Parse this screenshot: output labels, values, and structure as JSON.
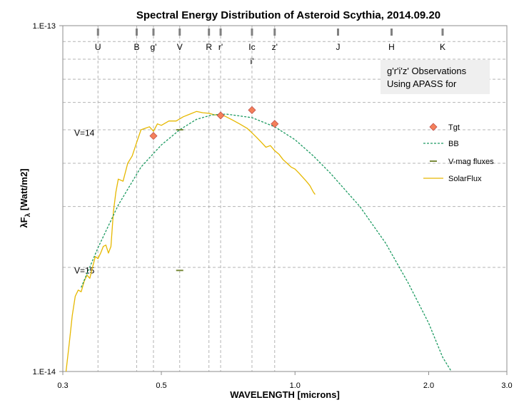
{
  "chart_data": {
    "type": "scatter",
    "title": "Spectral Energy Distribution of Asteroid Scythia, 2014.09.20",
    "xlabel": "WAVELENGTH [microns]",
    "ylabel": "λF",
    "ylabel_subscript": "λ",
    "ylabel_units": " [Watt/m2]",
    "x_scale": "log",
    "y_scale": "log",
    "xlim": [
      0.3,
      3.0
    ],
    "ylim": [
      1e-14,
      1e-13
    ],
    "x_ticks": [
      {
        "value": 0.3,
        "label": "0.3"
      },
      {
        "value": 0.5,
        "label": "0.5"
      },
      {
        "value": 1.0,
        "label": "1.0"
      },
      {
        "value": 2.0,
        "label": "2.0"
      },
      {
        "value": 3.0,
        "label": "3.0"
      }
    ],
    "y_ticks": [
      {
        "value": 1e-13,
        "label": "1.E-13"
      },
      {
        "value": 1e-14,
        "label": "1.E-14"
      }
    ],
    "x_gridlines": [
      0.36,
      0.44,
      0.48,
      0.55,
      0.64,
      0.68,
      0.8,
      0.9
    ],
    "y_gridlines": [
      9e-14,
      8e-14,
      7e-14,
      6e-14,
      5e-14,
      4e-14,
      3e-14,
      2e-14
    ],
    "bands": [
      {
        "label": "U",
        "x": 0.36
      },
      {
        "label": "B",
        "x": 0.44
      },
      {
        "label": "g'",
        "x": 0.48
      },
      {
        "label": "V",
        "x": 0.55
      },
      {
        "label": "R",
        "x": 0.64
      },
      {
        "label": "r'",
        "x": 0.68
      },
      {
        "label": "Ic",
        "label2": "i'",
        "x": 0.8
      },
      {
        "label": "z'",
        "x": 0.9
      },
      {
        "label": "J",
        "x": 1.25
      },
      {
        "label": "H",
        "x": 1.65
      },
      {
        "label": "K",
        "x": 2.15
      }
    ],
    "vmag_labels": [
      {
        "label": "V=14",
        "y": 4.9e-14
      },
      {
        "label": "V=15",
        "y": 1.96e-14
      }
    ],
    "note": {
      "line1": "g'r'i'z' Observations",
      "line2": "Using APASS for"
    },
    "legend_position": "right",
    "colors": {
      "tgt_fill": "#f4805a",
      "tgt_stroke": "#c0504d",
      "bb": "#1e9b63",
      "vmag": "#7a8b3c",
      "solar": "#e6b800",
      "grid": "#b4b4b4",
      "note_bg": "#efefef"
    },
    "series": [
      {
        "name": "Tgt",
        "kind": "marker",
        "points": [
          [
            0.48,
            4.8e-14
          ],
          [
            0.68,
            5.5e-14
          ],
          [
            0.8,
            5.7e-14
          ],
          [
            0.9,
            5.2e-14
          ]
        ]
      },
      {
        "name": "BB",
        "kind": "dashed-line",
        "points": [
          [
            0.33,
            1.75e-14
          ],
          [
            0.36,
            2.28e-14
          ],
          [
            0.4,
            3.03e-14
          ],
          [
            0.45,
            3.9e-14
          ],
          [
            0.5,
            4.52e-14
          ],
          [
            0.55,
            5e-14
          ],
          [
            0.6,
            5.36e-14
          ],
          [
            0.65,
            5.52e-14
          ],
          [
            0.7,
            5.55e-14
          ],
          [
            0.8,
            5.42e-14
          ],
          [
            0.9,
            5.1e-14
          ],
          [
            1.0,
            4.68e-14
          ],
          [
            1.1,
            4.2e-14
          ],
          [
            1.2,
            3.75e-14
          ],
          [
            1.4,
            3e-14
          ],
          [
            1.6,
            2.35e-14
          ],
          [
            1.8,
            1.8e-14
          ],
          [
            2.0,
            1.38e-14
          ],
          [
            2.15,
            1.1e-14
          ],
          [
            2.25,
            1e-14
          ]
        ]
      },
      {
        "name": "V-mag fluxes",
        "kind": "dash",
        "points": [
          [
            0.55,
            5e-14
          ],
          [
            0.55,
            1.96e-14
          ]
        ]
      },
      {
        "name": "SolarFlux",
        "kind": "line",
        "points": [
          [
            0.305,
            1e-14
          ],
          [
            0.31,
            1.2e-14
          ],
          [
            0.315,
            1.45e-14
          ],
          [
            0.32,
            1.65e-14
          ],
          [
            0.325,
            1.72e-14
          ],
          [
            0.33,
            1.7e-14
          ],
          [
            0.335,
            1.82e-14
          ],
          [
            0.34,
            1.9e-14
          ],
          [
            0.345,
            1.86e-14
          ],
          [
            0.35,
            2e-14
          ],
          [
            0.355,
            2.15e-14
          ],
          [
            0.36,
            2.12e-14
          ],
          [
            0.365,
            2.2e-14
          ],
          [
            0.37,
            2.3e-14
          ],
          [
            0.375,
            2.32e-14
          ],
          [
            0.38,
            2.2e-14
          ],
          [
            0.385,
            2.3e-14
          ],
          [
            0.39,
            2.9e-14
          ],
          [
            0.395,
            3.3e-14
          ],
          [
            0.4,
            3.6e-14
          ],
          [
            0.41,
            3.55e-14
          ],
          [
            0.42,
            4e-14
          ],
          [
            0.43,
            4.2e-14
          ],
          [
            0.44,
            4.6e-14
          ],
          [
            0.45,
            5e-14
          ],
          [
            0.46,
            5.05e-14
          ],
          [
            0.47,
            5.1e-14
          ],
          [
            0.48,
            4.95e-14
          ],
          [
            0.49,
            5.2e-14
          ],
          [
            0.5,
            5.15e-14
          ],
          [
            0.52,
            5.3e-14
          ],
          [
            0.54,
            5.3e-14
          ],
          [
            0.56,
            5.45e-14
          ],
          [
            0.58,
            5.55e-14
          ],
          [
            0.6,
            5.65e-14
          ],
          [
            0.62,
            5.6e-14
          ],
          [
            0.64,
            5.58e-14
          ],
          [
            0.66,
            5.52e-14
          ],
          [
            0.68,
            5.55e-14
          ],
          [
            0.7,
            5.45e-14
          ],
          [
            0.72,
            5.35e-14
          ],
          [
            0.75,
            5.2e-14
          ],
          [
            0.78,
            5.05e-14
          ],
          [
            0.8,
            4.9e-14
          ],
          [
            0.82,
            4.75e-14
          ],
          [
            0.84,
            4.6e-14
          ],
          [
            0.86,
            4.45e-14
          ],
          [
            0.88,
            4.5e-14
          ],
          [
            0.9,
            4.35e-14
          ],
          [
            0.92,
            4.25e-14
          ],
          [
            0.94,
            4.1e-14
          ],
          [
            0.96,
            4e-14
          ],
          [
            0.98,
            3.9e-14
          ],
          [
            1.0,
            3.85e-14
          ],
          [
            1.02,
            3.75e-14
          ],
          [
            1.04,
            3.65e-14
          ],
          [
            1.06,
            3.55e-14
          ],
          [
            1.08,
            3.45e-14
          ],
          [
            1.1,
            3.3e-14
          ],
          [
            1.11,
            3.25e-14
          ]
        ]
      }
    ]
  }
}
